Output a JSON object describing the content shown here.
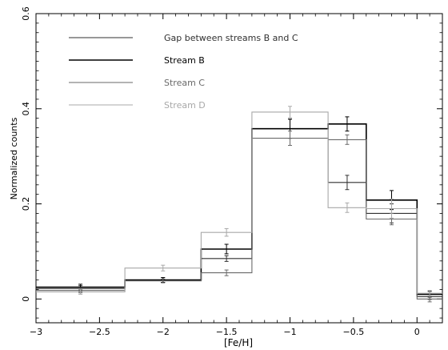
{
  "chart_data": {
    "type": "line",
    "drawstyle": "steps",
    "xlabel": "[Fe/H]",
    "ylabel": "Normalized counts",
    "xlim": [
      -3,
      0.2
    ],
    "ylim": [
      -0.05,
      0.6
    ],
    "xticks": [
      -3,
      -2.5,
      -2,
      -1.5,
      -1,
      -0.5,
      0
    ],
    "xtick_labels": [
      "−3",
      "−2.5",
      "−2",
      "−1.5",
      "−1",
      "−0.5",
      "0"
    ],
    "yticks": [
      0,
      0.2,
      0.4,
      0.6
    ],
    "ytick_labels": [
      "0",
      "0.2",
      "0.4",
      "0.6"
    ],
    "bin_edges": [
      -3,
      -2.3,
      -1.7,
      -1.3,
      -0.7,
      -0.4,
      0,
      0.2
    ],
    "bin_centers": [
      -2.65,
      -2.0,
      -1.5,
      -1.0,
      -0.55,
      -0.2,
      0.1
    ],
    "legend": {
      "placement": "top-left",
      "entries": [
        "Gap between streams B and C",
        "Stream B",
        "Stream C",
        "Stream D"
      ]
    },
    "series": [
      {
        "name": "Gap between streams B and C",
        "color": "#303030",
        "width": 1.1,
        "values": [
          0.022,
          0.04,
          0.085,
          0.358,
          0.245,
          0.18,
          0.005
        ],
        "errors": [
          0.006,
          0.005,
          0.006,
          0.02,
          0.015,
          0.02,
          0.006
        ]
      },
      {
        "name": "Stream B",
        "color": "#000000",
        "width": 1.6,
        "values": [
          0.025,
          0.04,
          0.105,
          0.358,
          0.368,
          0.208,
          0.01
        ],
        "errors": [
          0.006,
          0.005,
          0.01,
          0.02,
          0.015,
          0.02,
          0.006
        ]
      },
      {
        "name": "Stream C",
        "color": "#6a6a6a",
        "width": 1.1,
        "values": [
          0.018,
          0.038,
          0.055,
          0.338,
          0.335,
          0.168,
          0.0
        ],
        "errors": [
          0.005,
          0.004,
          0.006,
          0.015,
          0.01,
          0.012,
          0.006
        ]
      },
      {
        "name": "Stream D",
        "color": "#a8a8a8",
        "width": 1.1,
        "values": [
          0.015,
          0.065,
          0.14,
          0.393,
          0.192,
          0.19,
          0.012
        ],
        "errors": [
          0.005,
          0.006,
          0.008,
          0.012,
          0.01,
          0.02,
          0.006
        ]
      }
    ]
  }
}
